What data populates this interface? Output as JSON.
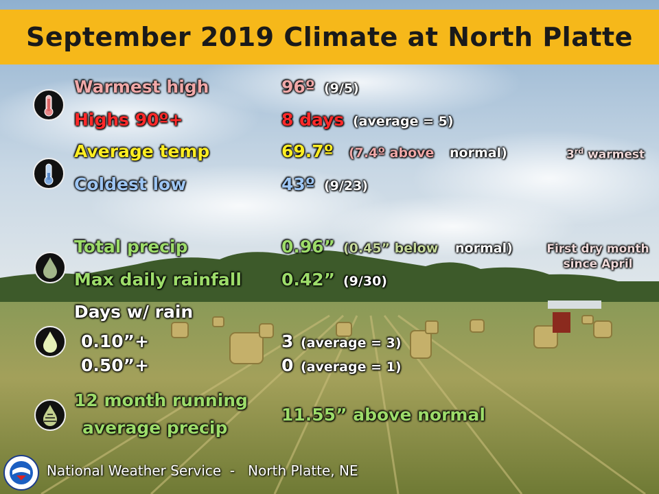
{
  "title": "September 2019 Climate at North Platte",
  "rows": {
    "warmest_high": {
      "label": "Warmest high",
      "value": "96º",
      "detail": "(9/5)"
    },
    "highs_90": {
      "label": "Highs 90º+",
      "value": "8 days",
      "detail": "(average = 5)"
    },
    "avg_temp": {
      "label": "Average temp",
      "value": "69.7º",
      "detail_a": "(7.4º above",
      "detail_b": "normal)"
    },
    "coldest_low": {
      "label": "Coldest low",
      "value": "43º",
      "detail": "(9/23)"
    },
    "total_precip": {
      "label": "Total precip",
      "value": "0.96”",
      "detail_a": "(0.45” below",
      "detail_b": "normal)"
    },
    "max_daily_rain": {
      "label": "Max daily rainfall",
      "value": "0.42”",
      "detail": "(9/30)"
    },
    "days_w_rain": {
      "label": "Days w/ rain"
    },
    "rain_010": {
      "label": "0.10”+",
      "value": "3",
      "detail": "(average = 3)"
    },
    "rain_050": {
      "label": "0.50”+",
      "value": "0",
      "detail": "(average = 1)"
    },
    "running_avg": {
      "label_line1": "12 month running",
      "label_line2": "average precip",
      "value": "11.55” above normal"
    }
  },
  "notes": {
    "rank_num": "3",
    "rank_sup": "rd",
    "rank_text": "warmest",
    "dry_line1": "First dry month",
    "dry_line2": "since April"
  },
  "footer": "National Weather Service  -   North Platte, NE",
  "icons": [
    "thermometer-hot-icon",
    "thermometer-cold-icon",
    "water-drop-icon",
    "water-drop-light-icon",
    "water-drop-striped-icon",
    "nws-logo-icon"
  ]
}
